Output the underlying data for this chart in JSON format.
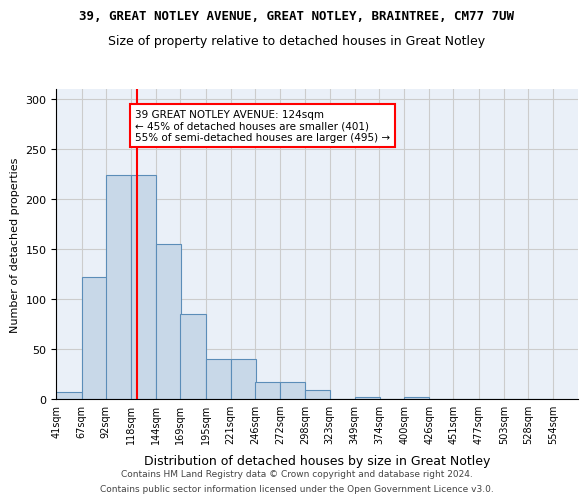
{
  "title1": "39, GREAT NOTLEY AVENUE, GREAT NOTLEY, BRAINTREE, CM77 7UW",
  "title2": "Size of property relative to detached houses in Great Notley",
  "xlabel": "Distribution of detached houses by size in Great Notley",
  "ylabel": "Number of detached properties",
  "bin_edges": [
    41,
    67,
    92,
    118,
    144,
    169,
    195,
    221,
    246,
    272,
    298,
    323,
    349,
    374,
    400,
    426,
    451,
    477,
    503,
    528,
    554
  ],
  "bar_heights": [
    7,
    122,
    224,
    224,
    155,
    85,
    40,
    40,
    17,
    17,
    9,
    0,
    2,
    0,
    2,
    0,
    0,
    0,
    0,
    0
  ],
  "bar_color": "#c8d8e8",
  "bar_edgecolor": "#5b8db8",
  "property_size": 124,
  "vline_color": "red",
  "annotation_text": "39 GREAT NOTLEY AVENUE: 124sqm\n← 45% of detached houses are smaller (401)\n55% of semi-detached houses are larger (495) →",
  "annotation_box_color": "white",
  "annotation_box_edgecolor": "red",
  "grid_color": "#cccccc",
  "background_color": "#eaf0f8",
  "ylim": [
    0,
    310
  ],
  "yticks": [
    0,
    50,
    100,
    150,
    200,
    250,
    300
  ],
  "footer1": "Contains HM Land Registry data © Crown copyright and database right 2024.",
  "footer2": "Contains public sector information licensed under the Open Government Licence v3.0."
}
